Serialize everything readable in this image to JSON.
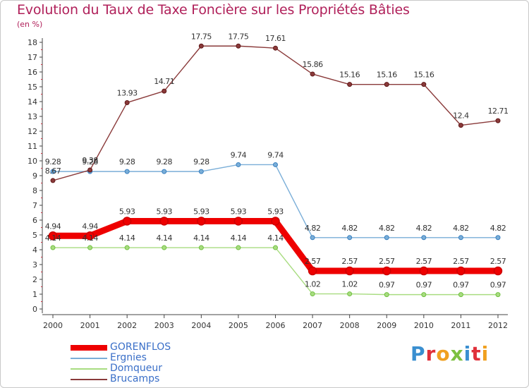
{
  "title": "Evolution du Taux de Taxe Foncière sur les Propriétés Bâties",
  "subtitle": "(en %)",
  "logo": {
    "text": "Proxiti",
    "letters": [
      "P",
      "r",
      "o",
      "x",
      "i",
      "t",
      "i"
    ],
    "colors": [
      "#3a8fd0",
      "#e0303a",
      "#f0a020",
      "#7cc040",
      "#3a8fd0",
      "#e0303a",
      "#f0a020"
    ]
  },
  "chart_data": {
    "type": "line",
    "title": "Evolution du Taux de Taxe Foncière sur les Propriétés Bâties",
    "ylabel": "(en %)",
    "xlabel": "",
    "x": [
      "2000",
      "2001",
      "2002",
      "2003",
      "2004",
      "2005",
      "2006",
      "2007",
      "2008",
      "2009",
      "2010",
      "2011",
      "2012"
    ],
    "ylim": [
      0,
      18
    ],
    "yticks": [
      "0",
      "1",
      "2",
      "3",
      "4",
      "5",
      "6",
      "7",
      "8",
      "9",
      "10",
      "11",
      "12",
      "13",
      "14",
      "15",
      "16",
      "17",
      "18"
    ],
    "grid": false,
    "legend_position": "bottom-left",
    "series": [
      {
        "name": "GORENFLOS",
        "color": "#ee0000",
        "marker_color": "#cc0000",
        "values": [
          4.94,
          4.94,
          5.93,
          5.93,
          5.93,
          5.93,
          5.93,
          2.57,
          2.57,
          2.57,
          2.57,
          2.57,
          2.57
        ],
        "labels": [
          "4.94",
          "4.94",
          "5.93",
          "5.93",
          "5.93",
          "5.93",
          "5.93",
          "2.57",
          "2.57",
          "2.57",
          "2.57",
          "2.57",
          "2.57"
        ]
      },
      {
        "name": "Ergnies",
        "color": "#7aaed8",
        "marker_color": "#3a80c0",
        "values": [
          9.28,
          9.28,
          9.28,
          9.28,
          9.28,
          9.74,
          9.74,
          4.82,
          4.82,
          4.82,
          4.82,
          4.82,
          4.82
        ],
        "labels": [
          "9.28",
          "9.28",
          "9.28",
          "9.28",
          "9.28",
          "9.74",
          "9.74",
          "4.82",
          "4.82",
          "4.82",
          "4.82",
          "4.82",
          "4.82"
        ]
      },
      {
        "name": "Domqueur",
        "color": "#a8dc80",
        "marker_color": "#70c040",
        "values": [
          4.14,
          4.14,
          4.14,
          4.14,
          4.14,
          4.14,
          4.14,
          1.02,
          1.02,
          0.97,
          0.97,
          0.97,
          0.97
        ],
        "labels": [
          "4.14",
          "4.14",
          "4.14",
          "4.14",
          "4.14",
          "4.14",
          "4.14",
          "1.02",
          "1.02",
          "0.97",
          "0.97",
          "0.97",
          "0.97"
        ]
      },
      {
        "name": "Brucamps",
        "color": "#8a3a3a",
        "marker_color": "#601818",
        "values": [
          8.67,
          9.38,
          13.93,
          14.71,
          17.75,
          17.75,
          17.61,
          15.86,
          15.16,
          15.16,
          15.16,
          12.4,
          12.71
        ],
        "labels": [
          "8.67",
          "9.38",
          "13.93",
          "14.71",
          "17.75",
          "17.75",
          "17.61",
          "15.86",
          "15.16",
          "15.16",
          "15.16",
          "12.4",
          "12.71"
        ]
      }
    ]
  }
}
